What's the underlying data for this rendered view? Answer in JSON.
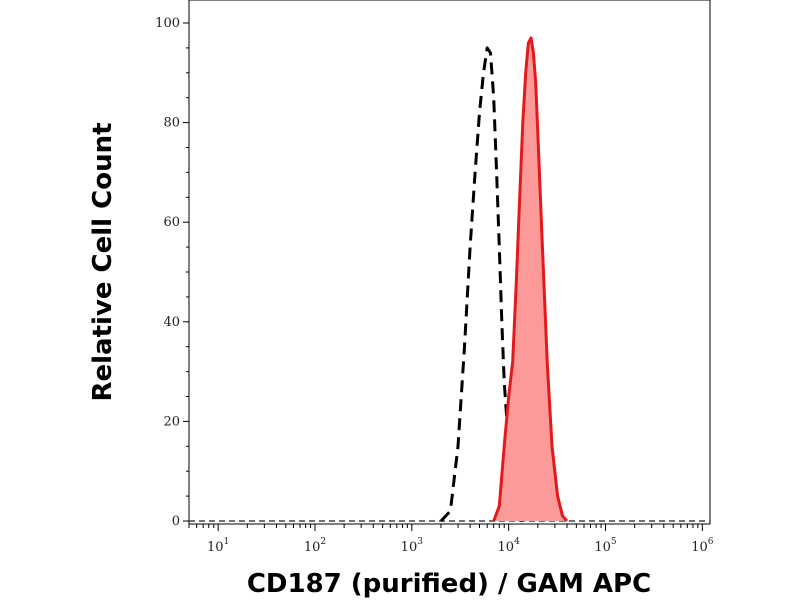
{
  "chart_data": {
    "type": "area",
    "title": "",
    "xlabel": "CD187 (purified) / GAM APC",
    "ylabel": "Relative Cell Count",
    "x_scale": "log",
    "xlim": [
      5,
      1200000
    ],
    "ylim": [
      0,
      100
    ],
    "grid": false,
    "legend": "none",
    "x_ticks": [
      {
        "base": "10",
        "exp": "1",
        "value": 10
      },
      {
        "base": "10",
        "exp": "2",
        "value": 100
      },
      {
        "base": "10",
        "exp": "3",
        "value": 1000
      },
      {
        "base": "10",
        "exp": "4",
        "value": 10000
      },
      {
        "base": "10",
        "exp": "5",
        "value": 100000
      },
      {
        "base": "10",
        "exp": "6",
        "value": 1000000
      }
    ],
    "y_ticks": [
      "0",
      "20",
      "40",
      "60",
      "80",
      "100"
    ],
    "series": [
      {
        "style": "dashed",
        "color": "#000000",
        "x": [
          2000,
          2500,
          3000,
          3500,
          4000,
          4500,
          5000,
          5500,
          6000,
          6500,
          7000,
          7500,
          8000,
          8500,
          9000,
          10000,
          11000,
          12000,
          13000,
          14000
        ],
        "values": [
          0,
          2,
          15,
          35,
          55,
          70,
          82,
          90,
          95,
          94,
          85,
          70,
          55,
          40,
          28,
          15,
          6,
          2,
          0.5,
          0
        ]
      },
      {
        "style": "filled",
        "color": "#e31a1c",
        "fill": "#fb9a99",
        "x": [
          7000,
          8000,
          9000,
          10000,
          11000,
          12000,
          13000,
          14000,
          15000,
          16000,
          17000,
          18000,
          19000,
          20000,
          22000,
          25000,
          28000,
          32000,
          36000,
          40000
        ],
        "values": [
          0,
          3,
          15,
          25,
          32,
          48,
          65,
          80,
          90,
          96,
          97,
          94,
          88,
          78,
          58,
          32,
          15,
          5,
          1,
          0
        ]
      }
    ]
  }
}
